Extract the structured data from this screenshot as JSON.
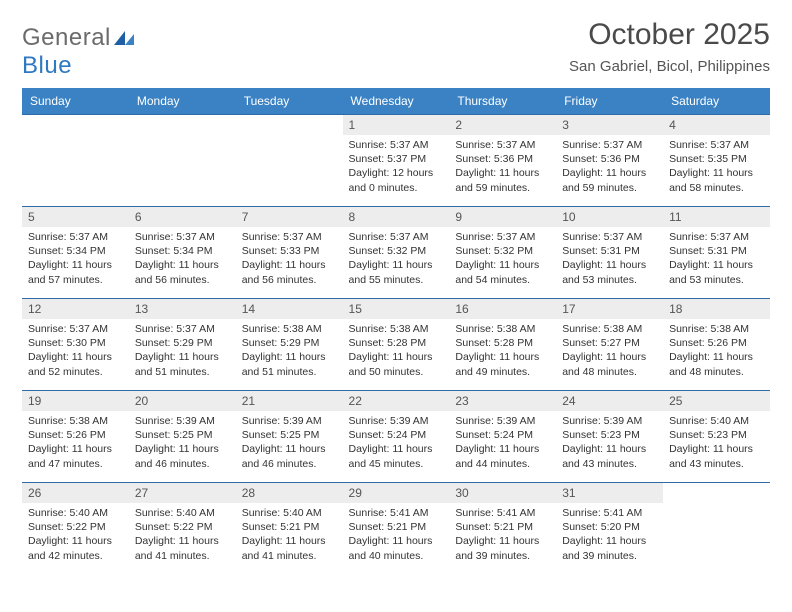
{
  "brand": {
    "word1": "General",
    "word2": "Blue",
    "color_general": "#6b6b6b",
    "color_blue": "#2f78c2",
    "mark_fill": "#1f5fa6"
  },
  "title": "October 2025",
  "subtitle": "San Gabriel, Bicol, Philippines",
  "colors": {
    "header_bg": "#3a82c4",
    "header_text": "#ffffff",
    "daynum_bg": "#ededed",
    "rule": "#2f6aa8",
    "body_text": "#333333",
    "title_text": "#4a4a4a"
  },
  "fonts": {
    "title_size_pt": 22,
    "subtitle_size_pt": 11,
    "header_size_pt": 9,
    "daynum_size_pt": 9,
    "body_size_pt": 8
  },
  "dow": [
    "Sunday",
    "Monday",
    "Tuesday",
    "Wednesday",
    "Thursday",
    "Friday",
    "Saturday"
  ],
  "weeks": [
    [
      {
        "n": "",
        "sr": "",
        "ss": "",
        "dl": ""
      },
      {
        "n": "",
        "sr": "",
        "ss": "",
        "dl": ""
      },
      {
        "n": "",
        "sr": "",
        "ss": "",
        "dl": ""
      },
      {
        "n": "1",
        "sr": "5:37 AM",
        "ss": "5:37 PM",
        "dl": "12 hours and 0 minutes."
      },
      {
        "n": "2",
        "sr": "5:37 AM",
        "ss": "5:36 PM",
        "dl": "11 hours and 59 minutes."
      },
      {
        "n": "3",
        "sr": "5:37 AM",
        "ss": "5:36 PM",
        "dl": "11 hours and 59 minutes."
      },
      {
        "n": "4",
        "sr": "5:37 AM",
        "ss": "5:35 PM",
        "dl": "11 hours and 58 minutes."
      }
    ],
    [
      {
        "n": "5",
        "sr": "5:37 AM",
        "ss": "5:34 PM",
        "dl": "11 hours and 57 minutes."
      },
      {
        "n": "6",
        "sr": "5:37 AM",
        "ss": "5:34 PM",
        "dl": "11 hours and 56 minutes."
      },
      {
        "n": "7",
        "sr": "5:37 AM",
        "ss": "5:33 PM",
        "dl": "11 hours and 56 minutes."
      },
      {
        "n": "8",
        "sr": "5:37 AM",
        "ss": "5:32 PM",
        "dl": "11 hours and 55 minutes."
      },
      {
        "n": "9",
        "sr": "5:37 AM",
        "ss": "5:32 PM",
        "dl": "11 hours and 54 minutes."
      },
      {
        "n": "10",
        "sr": "5:37 AM",
        "ss": "5:31 PM",
        "dl": "11 hours and 53 minutes."
      },
      {
        "n": "11",
        "sr": "5:37 AM",
        "ss": "5:31 PM",
        "dl": "11 hours and 53 minutes."
      }
    ],
    [
      {
        "n": "12",
        "sr": "5:37 AM",
        "ss": "5:30 PM",
        "dl": "11 hours and 52 minutes."
      },
      {
        "n": "13",
        "sr": "5:37 AM",
        "ss": "5:29 PM",
        "dl": "11 hours and 51 minutes."
      },
      {
        "n": "14",
        "sr": "5:38 AM",
        "ss": "5:29 PM",
        "dl": "11 hours and 51 minutes."
      },
      {
        "n": "15",
        "sr": "5:38 AM",
        "ss": "5:28 PM",
        "dl": "11 hours and 50 minutes."
      },
      {
        "n": "16",
        "sr": "5:38 AM",
        "ss": "5:28 PM",
        "dl": "11 hours and 49 minutes."
      },
      {
        "n": "17",
        "sr": "5:38 AM",
        "ss": "5:27 PM",
        "dl": "11 hours and 48 minutes."
      },
      {
        "n": "18",
        "sr": "5:38 AM",
        "ss": "5:26 PM",
        "dl": "11 hours and 48 minutes."
      }
    ],
    [
      {
        "n": "19",
        "sr": "5:38 AM",
        "ss": "5:26 PM",
        "dl": "11 hours and 47 minutes."
      },
      {
        "n": "20",
        "sr": "5:39 AM",
        "ss": "5:25 PM",
        "dl": "11 hours and 46 minutes."
      },
      {
        "n": "21",
        "sr": "5:39 AM",
        "ss": "5:25 PM",
        "dl": "11 hours and 46 minutes."
      },
      {
        "n": "22",
        "sr": "5:39 AM",
        "ss": "5:24 PM",
        "dl": "11 hours and 45 minutes."
      },
      {
        "n": "23",
        "sr": "5:39 AM",
        "ss": "5:24 PM",
        "dl": "11 hours and 44 minutes."
      },
      {
        "n": "24",
        "sr": "5:39 AM",
        "ss": "5:23 PM",
        "dl": "11 hours and 43 minutes."
      },
      {
        "n": "25",
        "sr": "5:40 AM",
        "ss": "5:23 PM",
        "dl": "11 hours and 43 minutes."
      }
    ],
    [
      {
        "n": "26",
        "sr": "5:40 AM",
        "ss": "5:22 PM",
        "dl": "11 hours and 42 minutes."
      },
      {
        "n": "27",
        "sr": "5:40 AM",
        "ss": "5:22 PM",
        "dl": "11 hours and 41 minutes."
      },
      {
        "n": "28",
        "sr": "5:40 AM",
        "ss": "5:21 PM",
        "dl": "11 hours and 41 minutes."
      },
      {
        "n": "29",
        "sr": "5:41 AM",
        "ss": "5:21 PM",
        "dl": "11 hours and 40 minutes."
      },
      {
        "n": "30",
        "sr": "5:41 AM",
        "ss": "5:21 PM",
        "dl": "11 hours and 39 minutes."
      },
      {
        "n": "31",
        "sr": "5:41 AM",
        "ss": "5:20 PM",
        "dl": "11 hours and 39 minutes."
      },
      {
        "n": "",
        "sr": "",
        "ss": "",
        "dl": ""
      }
    ]
  ],
  "labels": {
    "sunrise": "Sunrise:",
    "sunset": "Sunset:",
    "daylight": "Daylight:"
  }
}
